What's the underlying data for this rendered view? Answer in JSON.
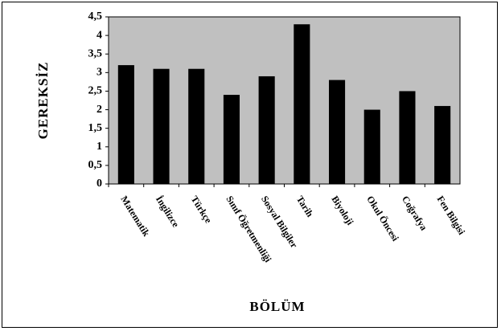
{
  "chart_data": {
    "type": "bar",
    "title": "",
    "xlabel": "BÖLÜM",
    "ylabel": "GEREKSİZ",
    "ylim": [
      0,
      4.5
    ],
    "yticks": [
      "0",
      "0,5",
      "1",
      "1,5",
      "2",
      "2,5",
      "3",
      "3,5",
      "4",
      "4,5"
    ],
    "categories": [
      "Matematik",
      "İngilizce",
      "Türkçe",
      "Sınıf Öğretmenliği",
      "Sosyal Bilgiler",
      "Tarih",
      "Biyoloji",
      "Okul Öncesi",
      "Coğrafya",
      "Fen Bilgisi"
    ],
    "values": [
      3.2,
      3.1,
      3.1,
      2.4,
      2.9,
      4.3,
      2.8,
      2.0,
      2.5,
      2.1
    ],
    "grid": false,
    "legend": "none",
    "colors": {
      "plot_bg": "#c0c0c0",
      "bar": "#000000",
      "axis": "#000000"
    }
  }
}
